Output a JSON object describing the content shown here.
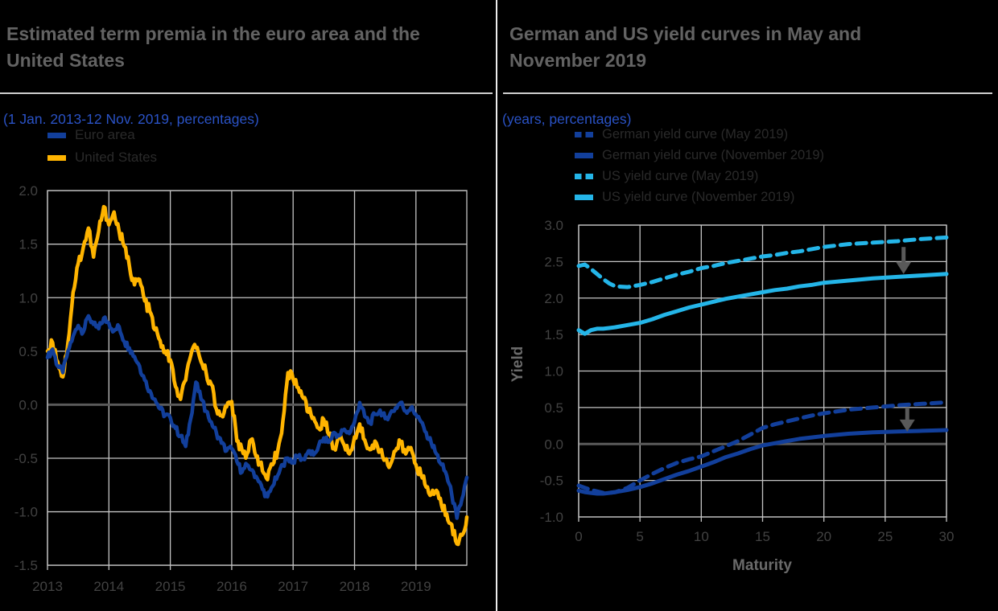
{
  "colors": {
    "background": "#000000",
    "title": "#636363",
    "subtitle": "#2a52c5",
    "grid": "#c4c4c4",
    "zero_line": "#5a5a5a",
    "tick_label": "#424242",
    "legend_text": "#2a2a2a",
    "axis_title": "#6a6a6a",
    "divider": "#ededed",
    "separator": "#cfcfcf",
    "euro_area_blue": "#123f9b",
    "us_yellow": "#ffb400",
    "light_blue": "#24b5e8",
    "arrow_gray": "#595959"
  },
  "chart_data": [
    {
      "type": "line",
      "title": "Estimated term premia in the euro area and the United States",
      "title_lines": [
        "Estimated term premia in the euro area and the",
        "United States"
      ],
      "subtitle": "(1 Jan. 2013-12 Nov. 2019, percentages)",
      "xlabel": "",
      "ylabel": "",
      "xlim": [
        2013,
        2019.87
      ],
      "ylim": [
        -1.5,
        2.0
      ],
      "xticks": [
        2013,
        2014,
        2015,
        2016,
        2017,
        2018,
        2019
      ],
      "yticks": [
        2.0,
        1.5,
        1.0,
        0.5,
        0.0,
        -0.5,
        -1.0,
        -1.5
      ],
      "grid": true,
      "zero_line": true,
      "legend_position": "top-left",
      "x_start": 2013,
      "x_interval_months": 1,
      "series": [
        {
          "name": "Euro area",
          "color": "#123f9b",
          "dash": "solid",
          "values": [
            0.44,
            0.52,
            0.36,
            0.3,
            0.5,
            0.64,
            0.74,
            0.68,
            0.83,
            0.75,
            0.71,
            0.81,
            0.76,
            0.69,
            0.73,
            0.59,
            0.53,
            0.45,
            0.36,
            0.23,
            0.13,
            0.05,
            -0.04,
            -0.1,
            -0.12,
            -0.22,
            -0.29,
            -0.39,
            -0.13,
            0.21,
            0.05,
            -0.06,
            -0.16,
            -0.26,
            -0.36,
            -0.43,
            -0.41,
            -0.53,
            -0.63,
            -0.56,
            -0.61,
            -0.69,
            -0.79,
            -0.86,
            -0.76,
            -0.66,
            -0.56,
            -0.5,
            -0.53,
            -0.48,
            -0.51,
            -0.43,
            -0.47,
            -0.38,
            -0.31,
            -0.35,
            -0.26,
            -0.29,
            -0.23,
            -0.27,
            -0.16,
            0.02,
            -0.11,
            -0.17,
            -0.09,
            -0.05,
            -0.13,
            -0.08,
            -0.03,
            0.02,
            -0.06,
            -0.03,
            -0.09,
            -0.16,
            -0.26,
            -0.36,
            -0.46,
            -0.56,
            -0.66,
            -0.84,
            -1.06,
            -0.88,
            -0.68
          ]
        },
        {
          "name": "United States",
          "color": "#ffb400",
          "dash": "solid",
          "values": [
            0.5,
            0.58,
            0.4,
            0.26,
            0.58,
            1.05,
            1.32,
            1.47,
            1.65,
            1.38,
            1.62,
            1.85,
            1.68,
            1.8,
            1.62,
            1.48,
            1.3,
            1.12,
            1.17,
            0.97,
            0.87,
            0.7,
            0.6,
            0.5,
            0.42,
            0.17,
            0.05,
            0.23,
            0.46,
            0.53,
            0.4,
            0.3,
            0.19,
            -0.04,
            -0.1,
            -0.02,
            0.03,
            -0.34,
            -0.42,
            -0.46,
            -0.32,
            -0.48,
            -0.62,
            -0.7,
            -0.56,
            -0.43,
            -0.15,
            0.3,
            0.24,
            0.16,
            0.06,
            -0.07,
            -0.12,
            -0.22,
            -0.14,
            -0.28,
            -0.4,
            -0.3,
            -0.38,
            -0.46,
            -0.3,
            -0.18,
            -0.33,
            -0.42,
            -0.34,
            -0.43,
            -0.51,
            -0.56,
            -0.43,
            -0.36,
            -0.46,
            -0.4,
            -0.56,
            -0.66,
            -0.77,
            -0.84,
            -0.8,
            -0.94,
            -1.02,
            -1.12,
            -1.3,
            -1.22,
            -1.05
          ]
        }
      ]
    },
    {
      "type": "line",
      "title": "German and US yield curves in May and November 2019",
      "title_lines": [
        "German and US yield curves in May and",
        "November 2019"
      ],
      "subtitle": "(years, percentages)",
      "xlabel": "Maturity",
      "ylabel": "Yield",
      "xlim": [
        0,
        30
      ],
      "ylim": [
        -1.0,
        3.0
      ],
      "xticks": [
        0,
        5,
        10,
        15,
        20,
        25,
        30
      ],
      "yticks": [
        3.0,
        2.5,
        2.0,
        1.5,
        1.0,
        0.5,
        0.0,
        -0.5,
        -1.0
      ],
      "grid": true,
      "zero_line": true,
      "legend_position": "top",
      "series": [
        {
          "name": "German yield curve (May 2019)",
          "color": "#123f9b",
          "dash": "dashed",
          "x": [
            0,
            0.5,
            1,
            1.5,
            2,
            2.5,
            3,
            4,
            5,
            6,
            7,
            8,
            9,
            10,
            11,
            12,
            13,
            14,
            15,
            16,
            17,
            18,
            19,
            20,
            22,
            24,
            26,
            28,
            30
          ],
          "values": [
            -0.57,
            -0.6,
            -0.63,
            -0.65,
            -0.67,
            -0.67,
            -0.66,
            -0.6,
            -0.5,
            -0.41,
            -0.33,
            -0.26,
            -0.21,
            -0.17,
            -0.1,
            -0.03,
            0.04,
            0.13,
            0.22,
            0.27,
            0.31,
            0.35,
            0.39,
            0.42,
            0.47,
            0.5,
            0.53,
            0.55,
            0.57
          ]
        },
        {
          "name": "German yield curve (November 2019)",
          "color": "#123f9b",
          "dash": "solid",
          "x": [
            0,
            0.5,
            1,
            1.5,
            2,
            2.5,
            3,
            4,
            5,
            6,
            7,
            8,
            9,
            10,
            11,
            12,
            13,
            14,
            15,
            16,
            17,
            18,
            19,
            20,
            22,
            24,
            26,
            28,
            30
          ],
          "values": [
            -0.64,
            -0.66,
            -0.67,
            -0.68,
            -0.68,
            -0.67,
            -0.66,
            -0.63,
            -0.59,
            -0.54,
            -0.48,
            -0.42,
            -0.37,
            -0.31,
            -0.25,
            -0.18,
            -0.13,
            -0.07,
            -0.02,
            0.01,
            0.04,
            0.07,
            0.09,
            0.11,
            0.14,
            0.16,
            0.17,
            0.18,
            0.19
          ]
        },
        {
          "name": "US yield curve (May 2019)",
          "color": "#24b5e8",
          "dash": "dashed",
          "x": [
            0,
            0.5,
            1,
            1.5,
            2,
            2.5,
            3,
            4,
            5,
            6,
            7,
            8,
            9,
            10,
            11,
            12,
            13,
            14,
            15,
            16,
            17,
            18,
            19,
            20,
            22,
            24,
            26,
            28,
            30
          ],
          "values": [
            2.44,
            2.46,
            2.4,
            2.33,
            2.26,
            2.2,
            2.16,
            2.15,
            2.18,
            2.22,
            2.27,
            2.32,
            2.36,
            2.41,
            2.44,
            2.48,
            2.51,
            2.54,
            2.57,
            2.59,
            2.62,
            2.64,
            2.67,
            2.7,
            2.74,
            2.76,
            2.78,
            2.81,
            2.83
          ]
        },
        {
          "name": "US yield curve (November 2019)",
          "color": "#24b5e8",
          "dash": "solid",
          "x": [
            0,
            0.5,
            1,
            1.5,
            2,
            2.5,
            3,
            4,
            5,
            6,
            7,
            8,
            9,
            10,
            11,
            12,
            13,
            14,
            15,
            16,
            17,
            18,
            19,
            20,
            22,
            24,
            26,
            28,
            30
          ],
          "values": [
            1.56,
            1.51,
            1.56,
            1.58,
            1.58,
            1.59,
            1.6,
            1.63,
            1.66,
            1.71,
            1.77,
            1.82,
            1.87,
            1.91,
            1.95,
            1.99,
            2.02,
            2.05,
            2.08,
            2.11,
            2.13,
            2.16,
            2.18,
            2.21,
            2.24,
            2.27,
            2.29,
            2.31,
            2.33
          ]
        }
      ],
      "annotations": [
        {
          "type": "arrow",
          "x": 26.5,
          "y_from": 2.7,
          "y_to": 2.33,
          "color": "#595959"
        },
        {
          "type": "arrow",
          "x": 26.8,
          "y_from": 0.5,
          "y_to": 0.17,
          "color": "#595959"
        }
      ]
    }
  ]
}
